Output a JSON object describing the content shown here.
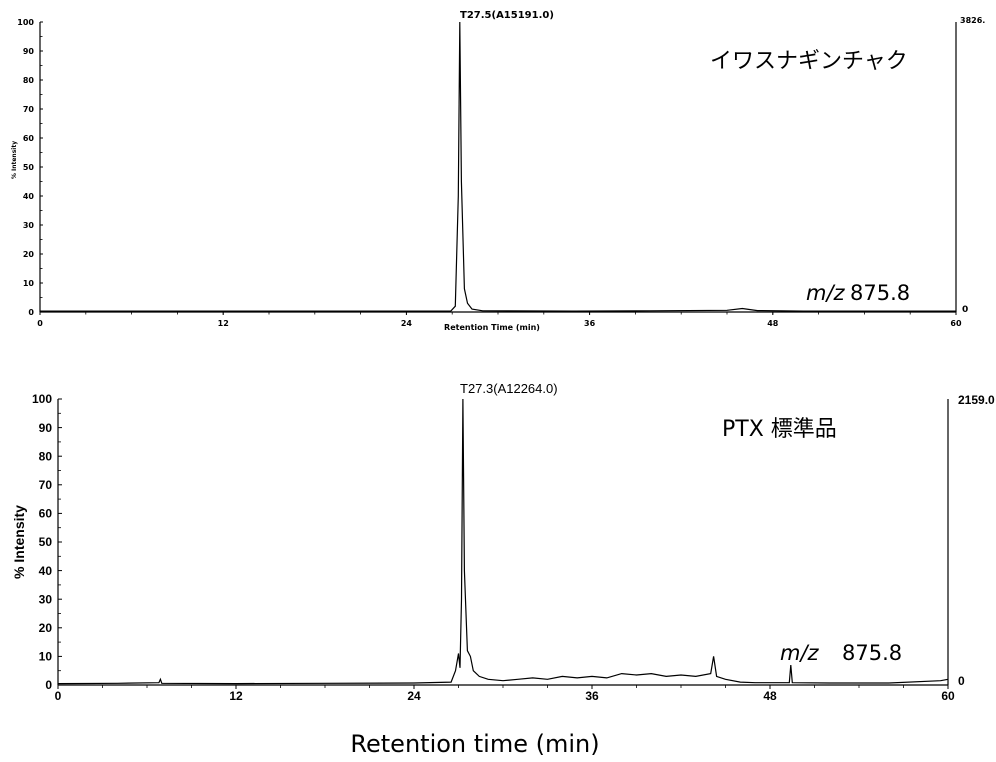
{
  "figure": {
    "shared_xlabel": "Retention time (min)"
  },
  "chart_data": [
    {
      "type": "line",
      "title": "",
      "sample_label": "イワスナギンチャク",
      "mz_prefix": "m/z",
      "mz_value": "875.8",
      "peak_label": "T27.5(A15191.0)",
      "xlabel": "Retention Time (min)",
      "ylabel": "% Intensity",
      "right_axis_top_label": "3826.",
      "right_axis_bottom_label": "0",
      "xlim": [
        0,
        60
      ],
      "ylim": [
        0,
        100
      ],
      "x_ticks": [
        "0",
        "12",
        "24",
        "36",
        "48",
        "60"
      ],
      "y_ticks": [
        "0",
        "10",
        "20",
        "30",
        "40",
        "50",
        "60",
        "70",
        "80",
        "90",
        "100"
      ],
      "grid": false,
      "series": [
        {
          "points": [
            [
              0,
              0.3
            ],
            [
              10,
              0.3
            ],
            [
              20,
              0.3
            ],
            [
              26.9,
              0.3
            ],
            [
              27.2,
              2
            ],
            [
              27.4,
              40
            ],
            [
              27.5,
              100
            ],
            [
              27.6,
              45
            ],
            [
              27.8,
              8
            ],
            [
              28.0,
              3
            ],
            [
              28.3,
              1
            ],
            [
              29,
              0.4
            ],
            [
              35,
              0.3
            ],
            [
              40,
              0.4
            ],
            [
              45,
              0.6
            ],
            [
              46,
              1.2
            ],
            [
              47,
              0.5
            ],
            [
              50,
              0.3
            ],
            [
              60,
              0.3
            ]
          ]
        }
      ]
    },
    {
      "type": "line",
      "title": "",
      "sample_label": "PTX 標準品",
      "mz_prefix": "m/z",
      "mz_value": "875.8",
      "peak_label": "T27.3(A12264.0)",
      "xlabel": "",
      "ylabel": "% Intensity",
      "right_axis_top_label": "2159.0",
      "right_axis_bottom_label": "0",
      "xlim": [
        0,
        60
      ],
      "ylim": [
        0,
        100
      ],
      "x_ticks": [
        "0",
        "12",
        "24",
        "36",
        "48",
        "60"
      ],
      "y_ticks": [
        "0",
        "10",
        "20",
        "30",
        "40",
        "50",
        "60",
        "70",
        "80",
        "90",
        "100"
      ],
      "grid": false,
      "series": [
        {
          "points": [
            [
              0,
              0.5
            ],
            [
              4,
              0.6
            ],
            [
              6.8,
              0.8
            ],
            [
              6.9,
              2
            ],
            [
              7.0,
              0.6
            ],
            [
              12,
              0.5
            ],
            [
              18,
              0.6
            ],
            [
              24,
              0.7
            ],
            [
              26.5,
              1
            ],
            [
              26.8,
              5
            ],
            [
              27.0,
              11
            ],
            [
              27.1,
              6
            ],
            [
              27.2,
              30
            ],
            [
              27.3,
              100
            ],
            [
              27.4,
              40
            ],
            [
              27.6,
              12
            ],
            [
              27.8,
              10
            ],
            [
              28.0,
              5
            ],
            [
              28.4,
              3
            ],
            [
              29,
              2
            ],
            [
              30,
              1.5
            ],
            [
              31,
              2
            ],
            [
              32,
              2.5
            ],
            [
              33,
              2
            ],
            [
              34,
              3
            ],
            [
              35,
              2.5
            ],
            [
              36,
              3
            ],
            [
              37,
              2.5
            ],
            [
              38,
              4
            ],
            [
              39,
              3.5
            ],
            [
              40,
              4
            ],
            [
              41,
              3
            ],
            [
              42,
              3.5
            ],
            [
              43,
              3
            ],
            [
              44,
              4
            ],
            [
              44.2,
              10
            ],
            [
              44.4,
              3
            ],
            [
              45,
              2
            ],
            [
              46,
              1
            ],
            [
              47,
              0.8
            ],
            [
              48,
              0.8
            ],
            [
              49.3,
              0.8
            ],
            [
              49.4,
              7
            ],
            [
              49.5,
              0.8
            ],
            [
              52,
              0.7
            ],
            [
              56,
              0.7
            ],
            [
              59.5,
              1.5
            ],
            [
              60,
              2
            ]
          ]
        }
      ]
    }
  ]
}
